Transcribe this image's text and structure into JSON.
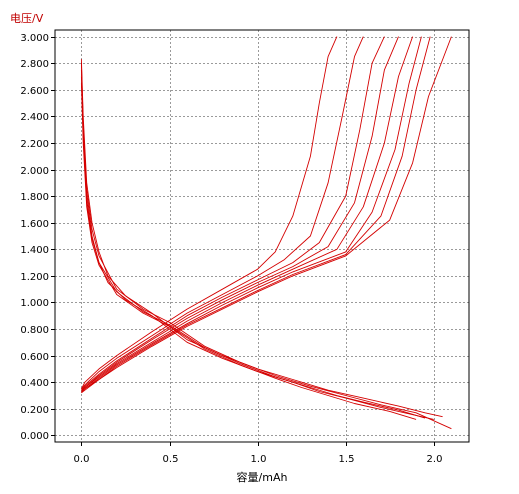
{
  "chart_data": {
    "type": "line",
    "ylabel": "电压/V",
    "xlabel": "容量/mAh",
    "xlim": [
      -0.15,
      2.2
    ],
    "ylim": [
      -0.05,
      3.05
    ],
    "xticks": [
      0.0,
      0.5,
      1.0,
      1.5,
      2.0
    ],
    "xtick_labels": [
      "0.0",
      "0.5",
      "1.0",
      "1.5",
      "2.0"
    ],
    "yticks": [
      0,
      0.2,
      0.4,
      0.6,
      0.8,
      1.0,
      1.2,
      1.4,
      1.6,
      1.8,
      2.0,
      2.2,
      2.4,
      2.6,
      2.8,
      3.0
    ],
    "ytick_labels": [
      "0.000",
      "0.200",
      "0.400",
      "0.600",
      "0.800",
      "1.000",
      "1.200",
      "1.400",
      "1.600",
      "1.800",
      "2.000",
      "2.200",
      "2.400",
      "2.600",
      "2.800",
      "3.000"
    ],
    "grid": true,
    "line_color": "#d40000",
    "series": [
      {
        "kind": "discharge",
        "x": [
          0.0,
          0.01,
          0.03,
          0.06,
          0.1,
          0.15,
          0.25,
          0.4,
          0.6,
          0.8,
          1.0,
          1.2,
          1.4,
          1.6,
          1.8,
          1.95,
          2.05
        ],
        "y": [
          2.83,
          2.4,
          1.9,
          1.6,
          1.38,
          1.2,
          1.05,
          0.92,
          0.72,
          0.6,
          0.5,
          0.42,
          0.34,
          0.28,
          0.22,
          0.17,
          0.14
        ]
      },
      {
        "kind": "discharge",
        "x": [
          0.0,
          0.01,
          0.03,
          0.06,
          0.1,
          0.15,
          0.25,
          0.4,
          0.6,
          0.8,
          1.0,
          1.2,
          1.35,
          1.5,
          1.7,
          1.9,
          2.0
        ],
        "y": [
          2.75,
          2.3,
          1.8,
          1.5,
          1.3,
          1.15,
          1.02,
          0.9,
          0.7,
          0.58,
          0.48,
          0.4,
          0.33,
          0.28,
          0.21,
          0.15,
          0.12
        ]
      },
      {
        "kind": "discharge",
        "x": [
          0.0,
          0.01,
          0.03,
          0.06,
          0.1,
          0.2,
          0.35,
          0.5,
          0.7,
          0.9,
          1.1,
          1.3,
          1.5,
          1.7,
          1.9,
          2.1
        ],
        "y": [
          2.8,
          2.35,
          1.85,
          1.55,
          1.35,
          1.1,
          0.95,
          0.85,
          0.67,
          0.55,
          0.45,
          0.37,
          0.3,
          0.23,
          0.17,
          0.05
        ]
      },
      {
        "kind": "discharge",
        "x": [
          0.0,
          0.01,
          0.03,
          0.06,
          0.1,
          0.2,
          0.35,
          0.5,
          0.7,
          0.9,
          1.1,
          1.3,
          1.45,
          1.6,
          1.8,
          1.95
        ],
        "y": [
          2.7,
          2.25,
          1.75,
          1.48,
          1.3,
          1.08,
          0.93,
          0.83,
          0.66,
          0.54,
          0.44,
          0.36,
          0.3,
          0.25,
          0.19,
          0.13
        ]
      },
      {
        "kind": "discharge",
        "x": [
          0.0,
          0.01,
          0.03,
          0.06,
          0.1,
          0.2,
          0.35,
          0.5,
          0.7,
          0.9,
          1.1,
          1.25,
          1.4,
          1.55,
          1.75,
          1.9
        ],
        "y": [
          2.65,
          2.2,
          1.72,
          1.45,
          1.28,
          1.06,
          0.92,
          0.82,
          0.65,
          0.53,
          0.43,
          0.36,
          0.3,
          0.24,
          0.18,
          0.12
        ]
      },
      {
        "kind": "charge",
        "x": [
          0.0,
          0.02,
          0.1,
          0.2,
          0.4,
          0.6,
          0.8,
          1.0,
          1.1,
          1.2,
          1.3,
          1.35,
          1.4,
          1.45
        ],
        "y": [
          0.35,
          0.4,
          0.5,
          0.6,
          0.78,
          0.95,
          1.1,
          1.25,
          1.38,
          1.65,
          2.1,
          2.5,
          2.85,
          3.0
        ]
      },
      {
        "kind": "charge",
        "x": [
          0.0,
          0.02,
          0.1,
          0.2,
          0.4,
          0.6,
          0.8,
          1.0,
          1.15,
          1.3,
          1.4,
          1.48,
          1.55,
          1.6
        ],
        "y": [
          0.35,
          0.38,
          0.48,
          0.58,
          0.75,
          0.92,
          1.06,
          1.2,
          1.32,
          1.5,
          1.9,
          2.4,
          2.85,
          3.0
        ]
      },
      {
        "kind": "charge",
        "x": [
          0.0,
          0.02,
          0.1,
          0.2,
          0.4,
          0.6,
          0.8,
          1.0,
          1.2,
          1.35,
          1.5,
          1.58,
          1.65,
          1.72
        ],
        "y": [
          0.34,
          0.37,
          0.46,
          0.56,
          0.73,
          0.9,
          1.04,
          1.17,
          1.3,
          1.45,
          1.8,
          2.3,
          2.8,
          3.0
        ]
      },
      {
        "kind": "charge",
        "x": [
          0.0,
          0.02,
          0.1,
          0.2,
          0.4,
          0.6,
          0.8,
          1.0,
          1.2,
          1.4,
          1.55,
          1.65,
          1.72,
          1.8
        ],
        "y": [
          0.34,
          0.36,
          0.45,
          0.55,
          0.72,
          0.88,
          1.02,
          1.15,
          1.27,
          1.42,
          1.75,
          2.25,
          2.75,
          3.0
        ]
      },
      {
        "kind": "charge",
        "x": [
          0.0,
          0.02,
          0.1,
          0.2,
          0.4,
          0.6,
          0.8,
          1.0,
          1.2,
          1.45,
          1.6,
          1.72,
          1.8,
          1.88
        ],
        "y": [
          0.33,
          0.36,
          0.44,
          0.54,
          0.7,
          0.86,
          1.0,
          1.13,
          1.25,
          1.4,
          1.72,
          2.2,
          2.7,
          3.0
        ]
      },
      {
        "kind": "charge",
        "x": [
          0.0,
          0.02,
          0.1,
          0.2,
          0.4,
          0.6,
          0.8,
          1.0,
          1.2,
          1.5,
          1.65,
          1.78,
          1.86,
          1.93
        ],
        "y": [
          0.33,
          0.35,
          0.43,
          0.53,
          0.69,
          0.84,
          0.98,
          1.11,
          1.23,
          1.38,
          1.68,
          2.15,
          2.65,
          3.0
        ]
      },
      {
        "kind": "charge",
        "x": [
          0.0,
          0.02,
          0.1,
          0.2,
          0.4,
          0.6,
          0.8,
          1.0,
          1.2,
          1.5,
          1.7,
          1.82,
          1.9,
          1.98
        ],
        "y": [
          0.32,
          0.35,
          0.42,
          0.52,
          0.68,
          0.83,
          0.96,
          1.09,
          1.21,
          1.36,
          1.65,
          2.1,
          2.6,
          3.0
        ]
      },
      {
        "kind": "charge",
        "x": [
          0.0,
          0.02,
          0.1,
          0.2,
          0.4,
          0.6,
          0.8,
          1.0,
          1.2,
          1.5,
          1.75,
          1.88,
          1.97,
          2.1
        ],
        "y": [
          0.32,
          0.34,
          0.42,
          0.51,
          0.67,
          0.82,
          0.95,
          1.08,
          1.2,
          1.35,
          1.62,
          2.05,
          2.55,
          3.0
        ]
      }
    ]
  }
}
